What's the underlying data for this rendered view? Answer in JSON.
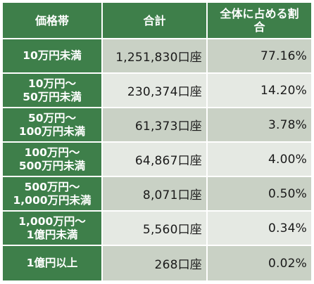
{
  "headers": {
    "price_range": "価格帯",
    "total": "合計",
    "share": "全体に占める割\n合"
  },
  "rows": [
    {
      "range": "10万円未満",
      "total": "1,251,830口座",
      "share": "77.16%"
    },
    {
      "range": "10万円～\n50万円未満",
      "total": "230,374口座",
      "share": "14.20%"
    },
    {
      "range": "50万円～\n100万円未満",
      "total": "61,373口座",
      "share": "3.78%"
    },
    {
      "range": "100万円～\n500万円未満",
      "total": "64,867口座",
      "share": "4.00%"
    },
    {
      "range": "500万円～\n1,000万円未満",
      "total": "8,071口座",
      "share": "0.50%"
    },
    {
      "range": "1,000万円～\n1億円未満",
      "total": "5,560口座",
      "share": "0.34%"
    },
    {
      "range": "1億円以上",
      "total": "268口座",
      "share": "0.02%"
    }
  ],
  "colors": {
    "header_bg": "#3e7f4a",
    "row_odd_bg": "#c9d1c5",
    "row_even_bg": "#e5e9e3"
  }
}
